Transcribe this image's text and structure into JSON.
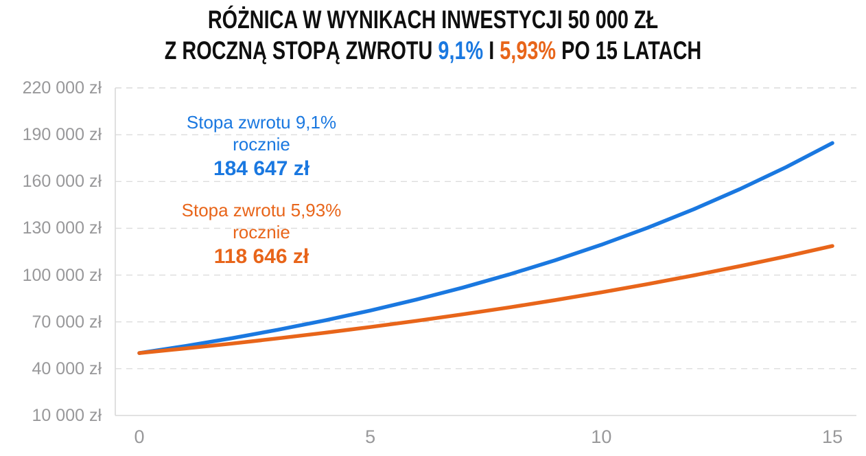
{
  "title": {
    "line1": "RÓŻNICA W WYNIKACH INWESTYCJI 50 000 ZŁ",
    "line2_prefix": "Z ROCZNĄ STOPĄ ZWROTU",
    "line2_rate1": "9,1%",
    "line2_mid": "I",
    "line2_rate2": "5,93%",
    "line2_suffix": "PO 15 LATACH"
  },
  "colors": {
    "blue": "#1a78e0",
    "orange": "#e8651a",
    "grid": "#dcdcdc",
    "axis": "#d8d8d8",
    "tick_label": "#98989a",
    "title_text": "#0f0f0f",
    "background": "#ffffff"
  },
  "annotations": {
    "blue": {
      "line1": "Stopa zwrotu 9,1%",
      "line2": "rocznie",
      "value": "184 647 zł"
    },
    "orange": {
      "line1": "Stopa zwrotu 5,93%",
      "line2": "rocznie",
      "value": "118 646 zł"
    }
  },
  "chart_data": {
    "type": "line",
    "title": "Różnica w wynikach inwestycji 50 000 zł z roczną stopą zwrotu 9,1% i 5,93% po 15 latach",
    "xlabel": "",
    "ylabel": "",
    "xlim": [
      0,
      15
    ],
    "ylim": [
      10000,
      220000
    ],
    "grid": "horizontal-dashed",
    "legend_position": "none",
    "x": [
      0,
      1,
      2,
      3,
      4,
      5,
      6,
      7,
      8,
      9,
      10,
      11,
      12,
      13,
      14,
      15
    ],
    "x_ticks": [
      {
        "value": 0,
        "label": "0"
      },
      {
        "value": 5,
        "label": "5"
      },
      {
        "value": 10,
        "label": "10"
      },
      {
        "value": 15,
        "label": "15"
      }
    ],
    "y_ticks": [
      {
        "value": 220000,
        "label": "220 000 zł"
      },
      {
        "value": 190000,
        "label": "190 000 zł"
      },
      {
        "value": 160000,
        "label": "160 000 zł"
      },
      {
        "value": 130000,
        "label": "130 000 zł"
      },
      {
        "value": 100000,
        "label": "100 000 zł"
      },
      {
        "value": 70000,
        "label": "70 000 zł"
      },
      {
        "value": 40000,
        "label": "40 000 zł"
      },
      {
        "value": 10000,
        "label": "10 000 zł"
      }
    ],
    "series": [
      {
        "name": "Stopa zwrotu 9,1% rocznie",
        "color_key": "blue",
        "final_value_label": "184 647 zł",
        "values": [
          50000,
          54550,
          59514,
          64930,
          70838,
          77285,
          84318,
          91991,
          100362,
          109495,
          119459,
          130329,
          142189,
          155129,
          169245,
          184647
        ]
      },
      {
        "name": "Stopa zwrotu 5,93% rocznie",
        "color_key": "orange",
        "final_value_label": "118 646 zł",
        "values": [
          50000,
          52965,
          56106,
          59433,
          62957,
          66691,
          70645,
          74835,
          79272,
          83973,
          88953,
          94228,
          99815,
          105734,
          112005,
          118646
        ]
      }
    ]
  }
}
